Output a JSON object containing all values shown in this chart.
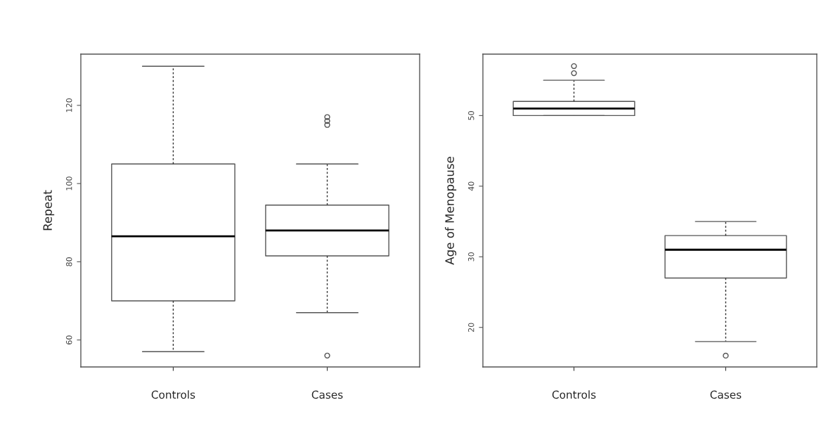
{
  "chart_data": [
    {
      "type": "box",
      "ylabel": "Repeat",
      "categories": [
        "Controls",
        "Cases"
      ],
      "ylim": [
        53.1,
        133.1
      ],
      "yticks": [
        60,
        80,
        100,
        120
      ],
      "grid": false,
      "boxes": [
        {
          "low": 57,
          "q1": 70,
          "median": 86.5,
          "q3": 105,
          "high": 130
        },
        {
          "low": 67,
          "q1": 81.5,
          "median": 88,
          "q3": 94.5,
          "high": 105,
          "outliers": [
            115,
            116,
            117,
            56
          ]
        }
      ]
    },
    {
      "type": "box",
      "ylabel": "Age of Menopause",
      "categories": [
        "Controls",
        "Cases"
      ],
      "ylim": [
        14.4,
        58.7
      ],
      "yticks": [
        20,
        30,
        40,
        50
      ],
      "grid": false,
      "boxes": [
        {
          "low": 50,
          "q1": 50,
          "median": 51,
          "q3": 52,
          "high": 55,
          "outliers": [
            56,
            57
          ]
        },
        {
          "low": 18,
          "q1": 27,
          "median": 31,
          "q3": 33,
          "high": 35,
          "outliers": [
            16
          ]
        }
      ]
    }
  ]
}
